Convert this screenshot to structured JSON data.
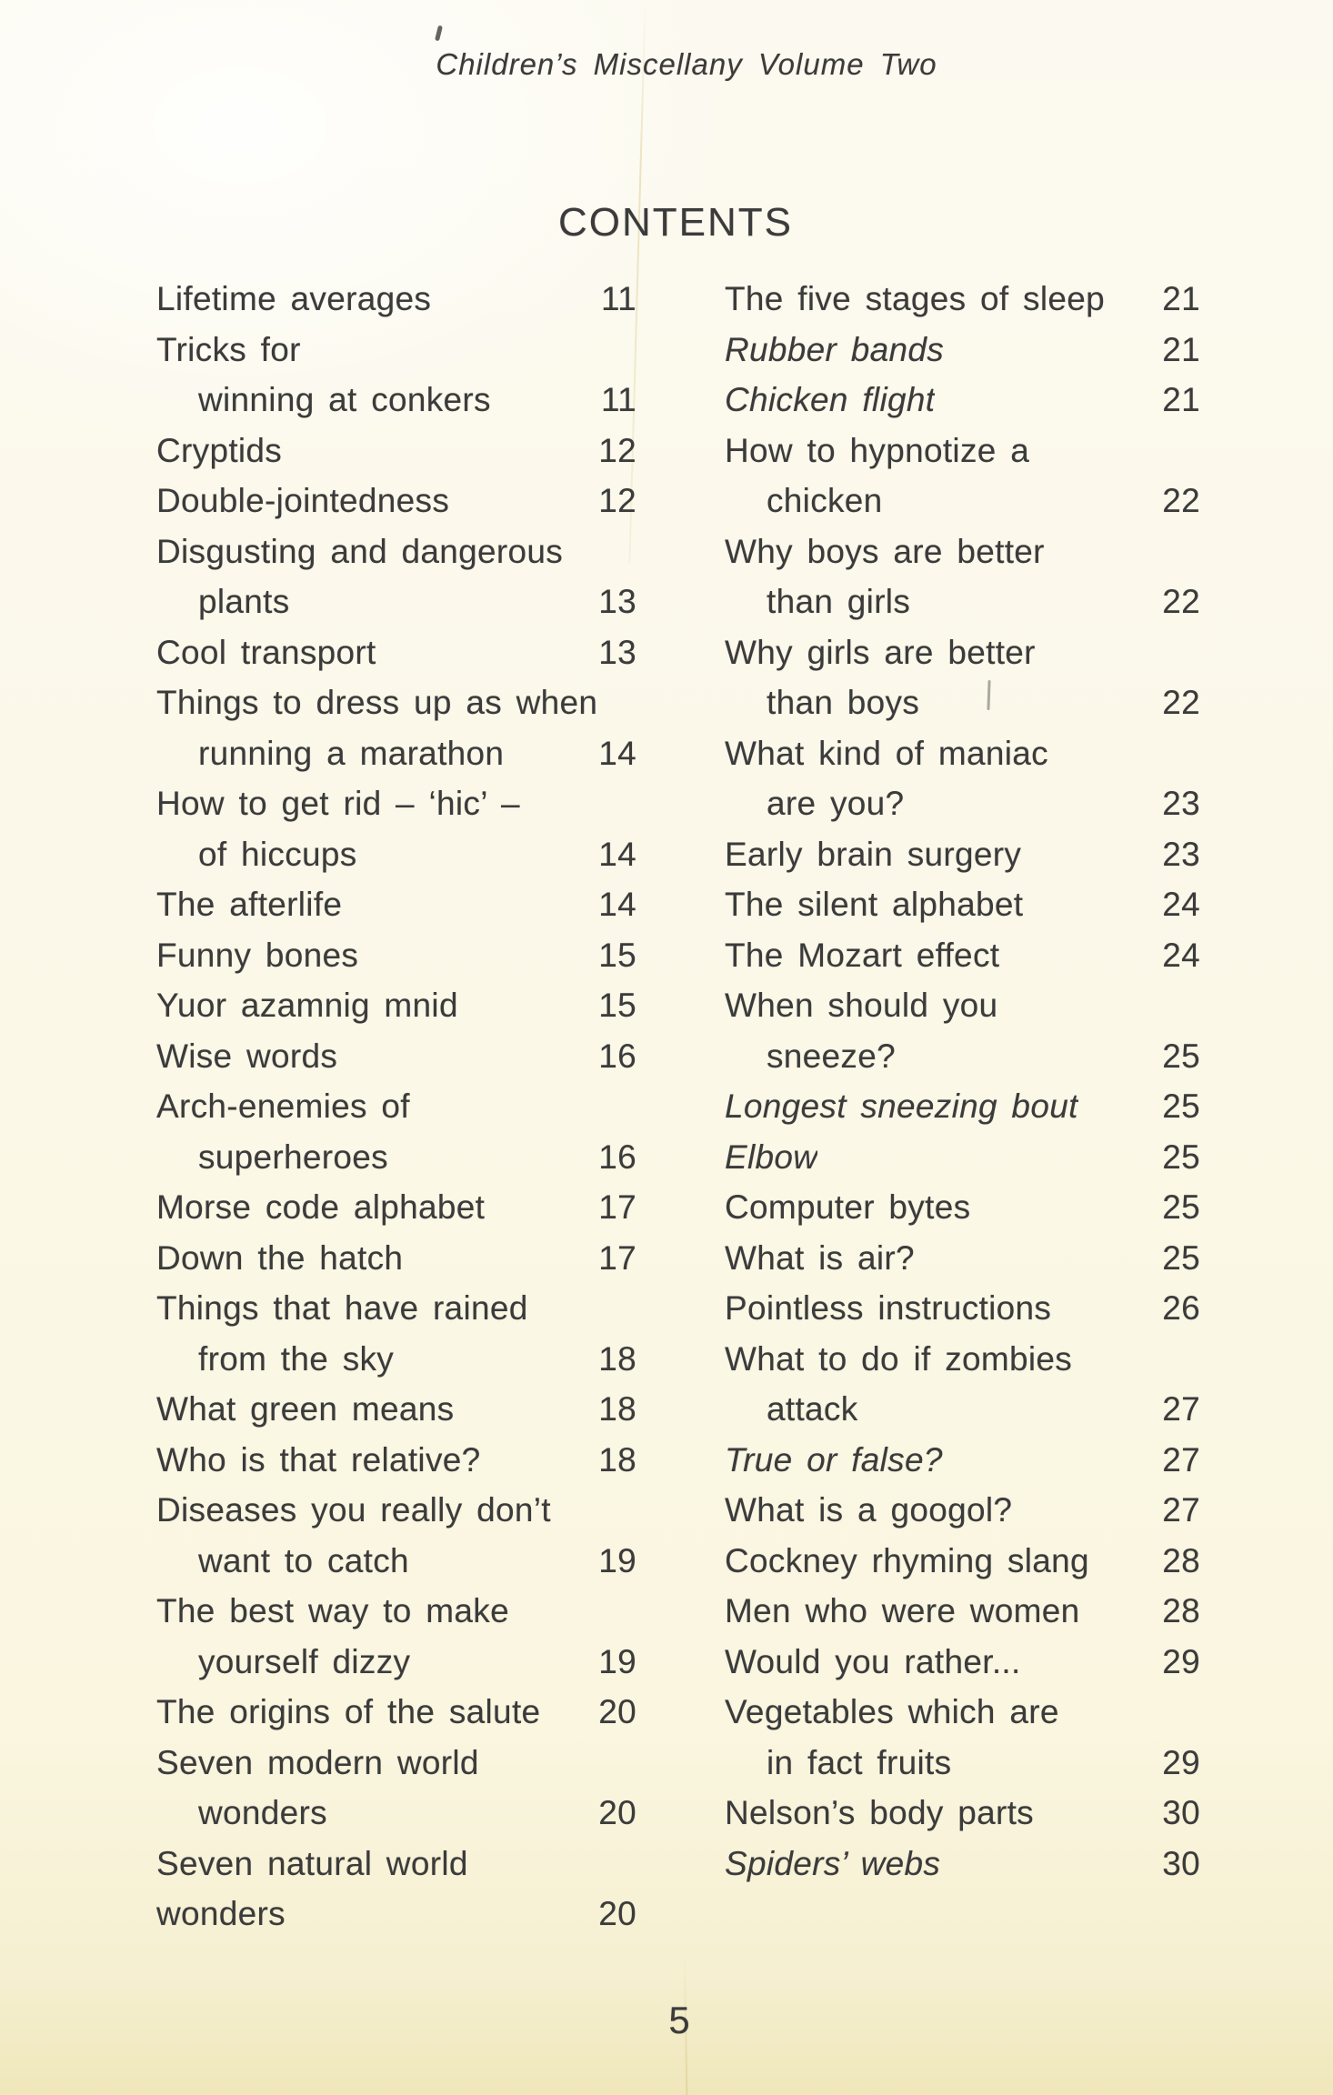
{
  "page": {
    "running_header": "Children’s Miscellany Volume Two",
    "title": "CONTENTS",
    "page_number": "5"
  },
  "colors": {
    "paper": "#fbf8e8",
    "paper_edge": "#efe7ba",
    "ink": "#3b3b3b"
  },
  "toc": {
    "left_column": [
      {
        "text": "Lifetime averages",
        "page": "11"
      },
      {
        "text": "Tricks for"
      },
      {
        "text": "winning at conkers",
        "indent": true,
        "page": "11"
      },
      {
        "text": "Cryptids",
        "page": "12"
      },
      {
        "text": "Double-jointedness",
        "page": "12"
      },
      {
        "text": "Disgusting and dangerous"
      },
      {
        "text": "plants",
        "indent": true,
        "page": "13"
      },
      {
        "text": "Cool transport",
        "page": "13"
      },
      {
        "text": "Things to dress up as when"
      },
      {
        "text": "running a marathon",
        "indent": true,
        "page": "14"
      },
      {
        "text": "How to get rid – ‘hic’ –"
      },
      {
        "text": "of hiccups",
        "indent": true,
        "page": "14"
      },
      {
        "text": "The afterlife",
        "page": "14"
      },
      {
        "text": "Funny bones",
        "page": "15"
      },
      {
        "text": "Yuor azamnig mnid",
        "page": "15"
      },
      {
        "text": "Wise words",
        "page": "16"
      },
      {
        "text": "Arch-enemies of"
      },
      {
        "text": "superheroes",
        "indent": true,
        "page": "16"
      },
      {
        "text": "Morse code alphabet",
        "page": "17"
      },
      {
        "text": "Down the hatch",
        "page": "17"
      },
      {
        "text": "Things that have rained"
      },
      {
        "text": "from the sky",
        "indent": true,
        "page": "18"
      },
      {
        "text": "What green means",
        "page": "18"
      },
      {
        "text": "Who is that relative?",
        "page": "18"
      },
      {
        "text": "Diseases you really don’t"
      },
      {
        "text": "want to catch",
        "indent": true,
        "page": "19"
      },
      {
        "text": "The best way to make"
      },
      {
        "text": "yourself dizzy",
        "indent": true,
        "page": "19"
      },
      {
        "text": "The origins of the salute",
        "page": "20"
      },
      {
        "text": "Seven modern world"
      },
      {
        "text": "wonders",
        "indent": true,
        "page": "20"
      },
      {
        "text": "Seven natural world"
      },
      {
        "text": "wonders",
        "page": "20"
      }
    ],
    "right_column": [
      {
        "text": "The five stages of sleep",
        "page": "21"
      },
      {
        "text": "Rubber bands",
        "italic": true,
        "page": "21"
      },
      {
        "text": "Chicken flight",
        "italic": true,
        "page": "21"
      },
      {
        "text": "How to hypnotize a"
      },
      {
        "text": "chicken",
        "indent": true,
        "page": "22"
      },
      {
        "text": "Why boys are better"
      },
      {
        "text": "than girls",
        "indent": true,
        "page": "22"
      },
      {
        "text": "Why girls are better"
      },
      {
        "text": "than boys",
        "indent": true,
        "page": "22"
      },
      {
        "text": "What kind of maniac"
      },
      {
        "text": "are you?",
        "indent": true,
        "page": "23"
      },
      {
        "text": "Early brain surgery",
        "page": "23"
      },
      {
        "text": "The silent alphabet",
        "page": "24"
      },
      {
        "text": "The Mozart effect",
        "page": "24"
      },
      {
        "text": "When should you"
      },
      {
        "text": "sneeze?",
        "indent": true,
        "page": "25"
      },
      {
        "text": "Longest sneezing bout",
        "italic": true,
        "page": "25"
      },
      {
        "text": "Elbow",
        "italic": true,
        "page": "25"
      },
      {
        "text": "Computer bytes",
        "page": "25"
      },
      {
        "text": "What is air?",
        "page": "25"
      },
      {
        "text": "Pointless instructions",
        "page": "26"
      },
      {
        "text": "What to do if zombies"
      },
      {
        "text": "attack",
        "indent": true,
        "page": "27"
      },
      {
        "text": "True or false?",
        "italic": true,
        "page": "27"
      },
      {
        "text": "What is a googol?",
        "page": "27"
      },
      {
        "text": "Cockney rhyming slang",
        "page": "28"
      },
      {
        "text": "Men who were women",
        "page": "28"
      },
      {
        "text": "Would you rather...",
        "page": "29"
      },
      {
        "text": "Vegetables which are"
      },
      {
        "text": "in fact fruits",
        "indent": true,
        "page": "29"
      },
      {
        "text": "Nelson’s body parts",
        "page": "30"
      },
      {
        "text": "Spiders’ webs",
        "italic": true,
        "page": "30"
      }
    ]
  }
}
